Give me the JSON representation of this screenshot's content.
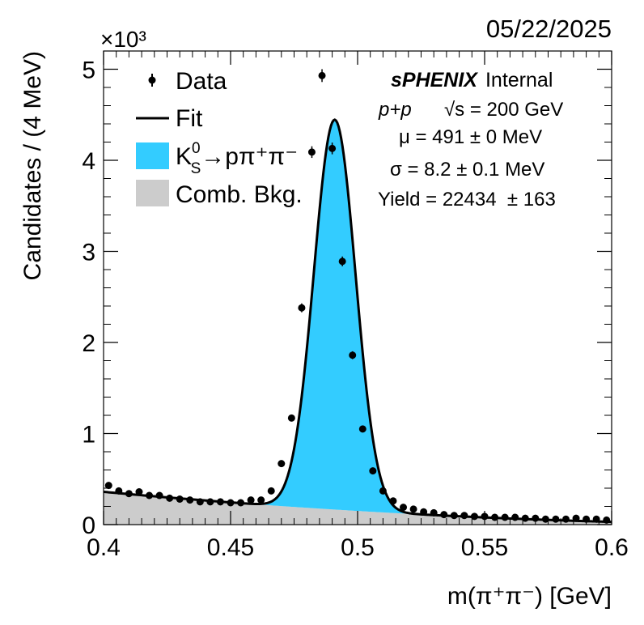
{
  "date": "05/22/2025",
  "chart_data": {
    "type": "scatter",
    "xlabel": "m(π⁺π⁻) [GeV]",
    "ylabel": "Candidates / (4 MeV)",
    "y_multiplier": "×10³",
    "xlim": [
      0.4,
      0.6
    ],
    "ylim": [
      0,
      5200
    ],
    "x_ticks": [
      "0.4",
      "0.45",
      "0.5",
      "0.55",
      "0.6"
    ],
    "y_ticks": [
      "0",
      "1",
      "2",
      "3",
      "4",
      "5"
    ],
    "legend": {
      "placement": "top-left",
      "data_label": "Data",
      "fit_label": "Fit",
      "signal_label": "K⁰S→pπ⁺π⁻",
      "signal_main": "K",
      "signal_sup": "0",
      "signal_sub": "S",
      "signal_rest": "→pπ⁺π⁻",
      "bkg_label": "Comb. Bkg."
    },
    "annotations": {
      "experiment": "sPHENIX",
      "status": "Internal",
      "system": "p+p",
      "energy_label": "√s = 200 GeV",
      "mu": "μ = 491 ± 0 MeV",
      "sigma": "σ = 8.2 ± 0.1 MeV",
      "yield": "Yield = 22434  ± 163"
    },
    "fit": {
      "mean": 0.491,
      "sigma": 0.0082,
      "peak_height": 4280,
      "bkg_at_0_4": 360,
      "bkg_at_0_6": 30,
      "bkg_curvature": 180
    },
    "series": [
      {
        "name": "Data",
        "x": [
          0.402,
          0.406,
          0.41,
          0.414,
          0.418,
          0.422,
          0.426,
          0.43,
          0.434,
          0.438,
          0.442,
          0.446,
          0.45,
          0.454,
          0.458,
          0.462,
          0.466,
          0.47,
          0.474,
          0.478,
          0.482,
          0.486,
          0.49,
          0.494,
          0.498,
          0.502,
          0.506,
          0.51,
          0.514,
          0.518,
          0.522,
          0.526,
          0.53,
          0.534,
          0.538,
          0.542,
          0.546,
          0.55,
          0.554,
          0.558,
          0.562,
          0.566,
          0.57,
          0.574,
          0.578,
          0.582,
          0.586,
          0.59,
          0.594,
          0.598
        ],
        "y": [
          430,
          370,
          340,
          360,
          320,
          320,
          290,
          280,
          270,
          250,
          250,
          250,
          240,
          240,
          270,
          270,
          370,
          670,
          1170,
          2380,
          4090,
          4930,
          4130,
          2890,
          1860,
          1050,
          590,
          370,
          260,
          190,
          170,
          140,
          130,
          110,
          100,
          100,
          90,
          90,
          80,
          80,
          80,
          70,
          70,
          60,
          60,
          60,
          70,
          60,
          60,
          50
        ]
      }
    ]
  }
}
